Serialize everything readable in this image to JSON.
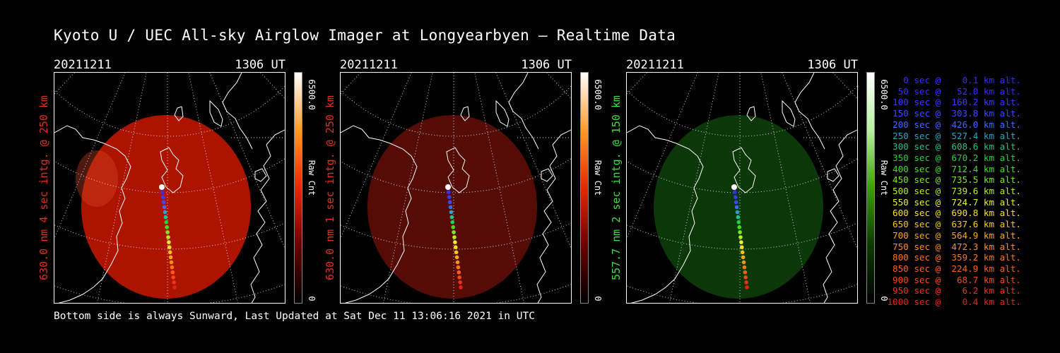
{
  "title": "Kyoto U / UEC All-sky Airglow Imager at Longyearbyen — Realtime Data",
  "panels": [
    {
      "date": "20211211",
      "time": "1306 UT",
      "label": "630.0 nm 4 sec intg. @ 250 km",
      "label_color": "#e0301e",
      "cbar_max": "6500.0",
      "cbar_unit": "Raw Cnt",
      "cbar_min": "0",
      "cbar_colors": [
        "#ffffff",
        "#ff9a2a",
        "#e22a00",
        "#6a0000",
        "#000000"
      ],
      "glow_color": "#b51500",
      "glow_opacity": 0.95
    },
    {
      "date": "20211211",
      "time": "1306 UT",
      "label": "630.0 nm 1 sec intg. @ 250 km",
      "label_color": "#e0301e",
      "cbar_max": "6500.0",
      "cbar_unit": "Raw Cnt",
      "cbar_min": "0",
      "cbar_colors": [
        "#ffffff",
        "#ff9a2a",
        "#e22a00",
        "#6a0000",
        "#000000"
      ],
      "glow_color": "#5a0c06",
      "glow_opacity": 0.95
    },
    {
      "date": "20211211",
      "time": "1306 UT",
      "label": "557.7 nm 2 sec intg. @ 150 km",
      "label_color": "#40dd40",
      "cbar_max": "6500.0",
      "cbar_unit": "Raw Cnt",
      "cbar_min": "0",
      "cbar_colors": [
        "#ffffff",
        "#b8f0a0",
        "#3aa000",
        "#0c3a00",
        "#000000"
      ],
      "glow_color": "#0c3a0a",
      "glow_opacity": 0.95
    }
  ],
  "legend": [
    {
      "text": "   0 sec @    0.1 km alt.",
      "color": "#3a2aff"
    },
    {
      "text": "  50 sec @   52.0 km alt.",
      "color": "#3a2aff"
    },
    {
      "text": " 100 sec @  160.2 km alt.",
      "color": "#3a3aff"
    },
    {
      "text": " 150 sec @  303.8 km alt.",
      "color": "#3a4aff"
    },
    {
      "text": " 200 sec @  426.0 km alt.",
      "color": "#3a6aff"
    },
    {
      "text": " 250 sec @  527.4 km alt.",
      "color": "#2aa0c8"
    },
    {
      "text": " 300 sec @  608.6 km alt.",
      "color": "#22c090"
    },
    {
      "text": " 350 sec @  670.2 km alt.",
      "color": "#22d040"
    },
    {
      "text": " 400 sec @  712.4 km alt.",
      "color": "#40e020"
    },
    {
      "text": " 450 sec @  735.5 km alt.",
      "color": "#7ae820"
    },
    {
      "text": " 500 sec @  739.6 km alt.",
      "color": "#b8f020"
    },
    {
      "text": " 550 sec @  724.7 km alt.",
      "color": "#e8f030"
    },
    {
      "text": " 600 sec @  690.8 km alt.",
      "color": "#f8e020"
    },
    {
      "text": " 650 sec @  637.6 km alt.",
      "color": "#f8c818"
    },
    {
      "text": " 700 sec @  564.9 km alt.",
      "color": "#f8a818"
    },
    {
      "text": " 750 sec @  472.3 km alt.",
      "color": "#f89018"
    },
    {
      "text": " 800 sec @  359.2 km alt.",
      "color": "#f87818"
    },
    {
      "text": " 850 sec @  224.9 km alt.",
      "color": "#f86018"
    },
    {
      "text": " 900 sec @   68.7 km alt.",
      "color": "#f84818"
    },
    {
      "text": " 950 sec @    6.2 km alt.",
      "color": "#f03018"
    },
    {
      "text": "1000 sec @    0.4 km alt.",
      "color": "#e82010"
    }
  ],
  "footer": "Bottom side is always Sunward, Last Updated at Sat Dec 11 13:06:16 2021 in UTC"
}
